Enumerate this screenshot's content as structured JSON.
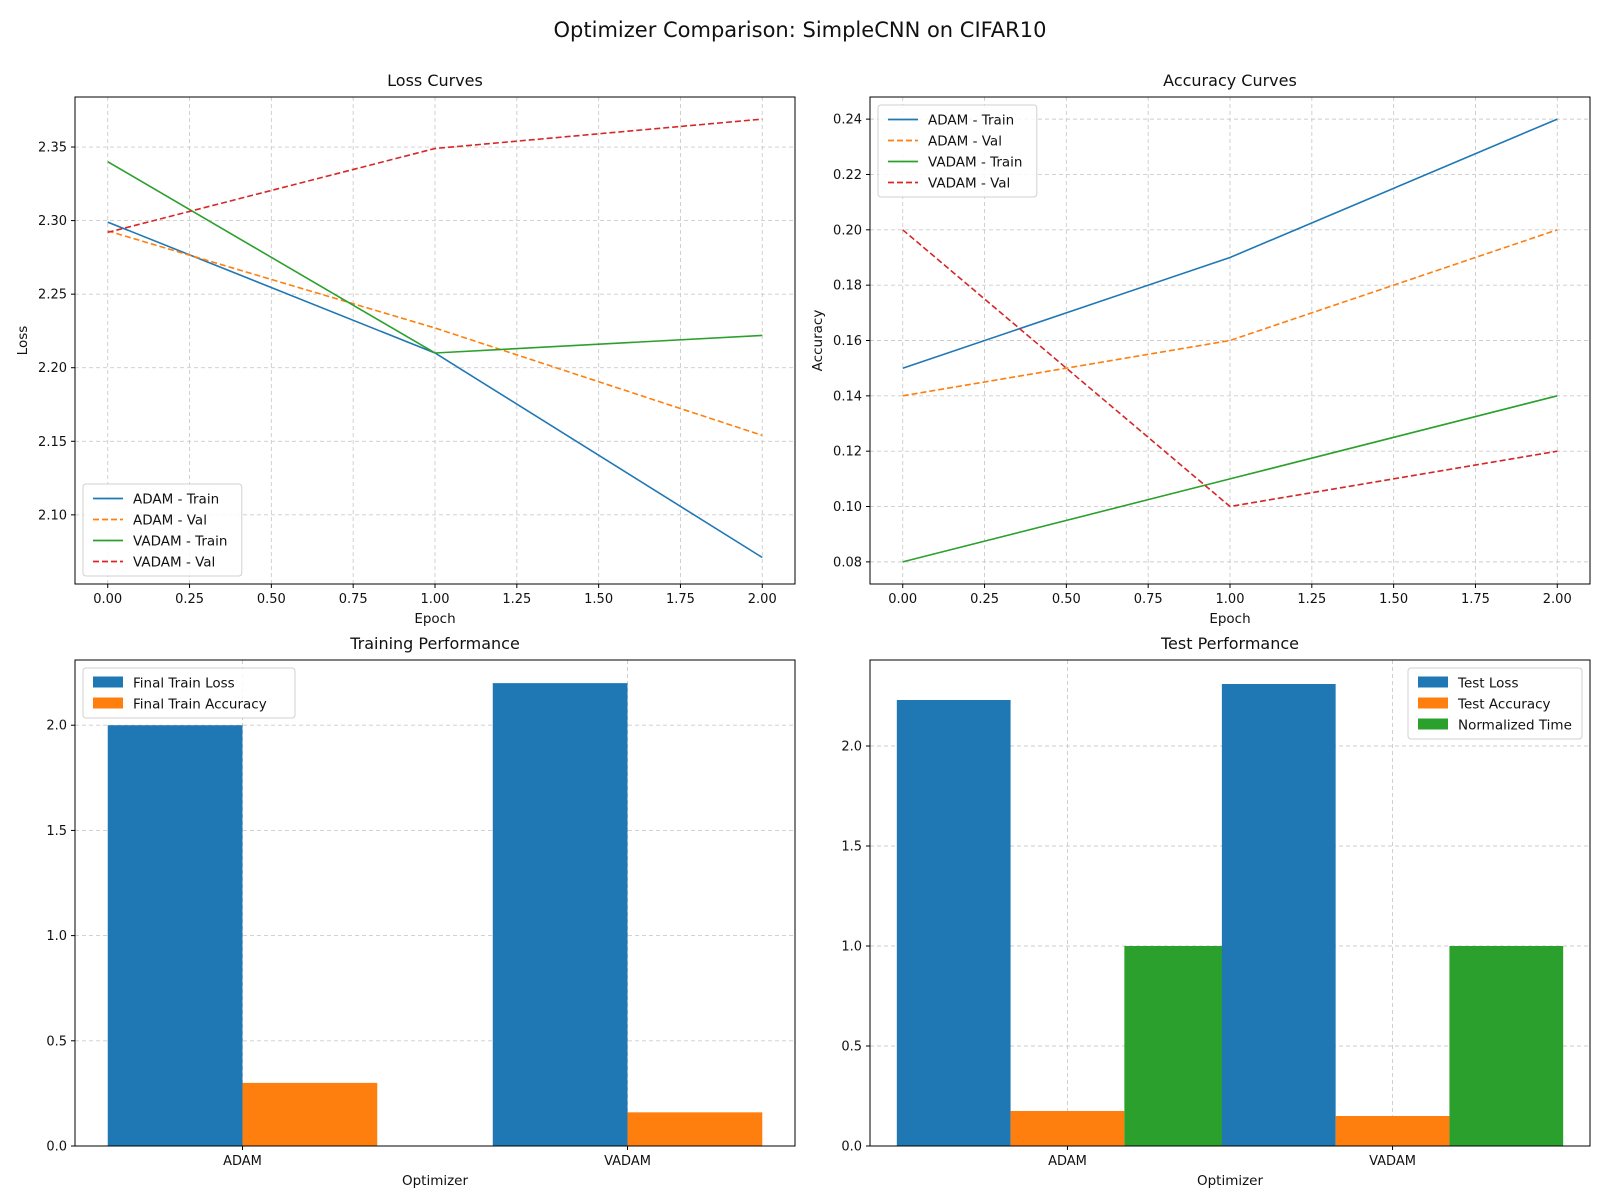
{
  "figure": {
    "title": "Optimizer Comparison: SimpleCNN on CIFAR10"
  },
  "chart_data": [
    {
      "type": "line",
      "title": "Loss Curves",
      "xlabel": "Epoch",
      "ylabel": "Loss",
      "x": [
        0,
        1,
        2
      ],
      "xlim": [
        -0.1,
        2.1
      ],
      "ylim": [
        2.053,
        2.384
      ],
      "xticks": [
        0,
        0.25,
        0.5,
        0.75,
        1.0,
        1.25,
        1.5,
        1.75,
        2.0
      ],
      "xtick_labels": [
        "0.00",
        "0.25",
        "0.50",
        "0.75",
        "1.00",
        "1.25",
        "1.50",
        "1.75",
        "2.00"
      ],
      "yticks": [
        2.1,
        2.15,
        2.2,
        2.25,
        2.3,
        2.35
      ],
      "ytick_labels": [
        "2.10",
        "2.15",
        "2.20",
        "2.25",
        "2.30",
        "2.35"
      ],
      "grid": true,
      "legend": "lower-left",
      "series": [
        {
          "name": "ADAM - Train",
          "values": [
            2.299,
            2.21,
            2.071
          ],
          "color": "#1f77b4",
          "dashed": false
        },
        {
          "name": "ADAM - Val",
          "values": [
            2.293,
            2.227,
            2.154
          ],
          "color": "#ff7f0e",
          "dashed": true
        },
        {
          "name": "VADAM - Train",
          "values": [
            2.34,
            2.21,
            2.222
          ],
          "color": "#2ca02c",
          "dashed": false
        },
        {
          "name": "VADAM - Val",
          "values": [
            2.292,
            2.349,
            2.369
          ],
          "color": "#d62728",
          "dashed": true
        }
      ]
    },
    {
      "type": "line",
      "title": "Accuracy Curves",
      "xlabel": "Epoch",
      "ylabel": "Accuracy",
      "x": [
        0,
        1,
        2
      ],
      "xlim": [
        -0.1,
        2.1
      ],
      "ylim": [
        0.072,
        0.248
      ],
      "xticks": [
        0,
        0.25,
        0.5,
        0.75,
        1.0,
        1.25,
        1.5,
        1.75,
        2.0
      ],
      "xtick_labels": [
        "0.00",
        "0.25",
        "0.50",
        "0.75",
        "1.00",
        "1.25",
        "1.50",
        "1.75",
        "2.00"
      ],
      "yticks": [
        0.08,
        0.1,
        0.12,
        0.14,
        0.16,
        0.18,
        0.2,
        0.22,
        0.24
      ],
      "ytick_labels": [
        "0.08",
        "0.10",
        "0.12",
        "0.14",
        "0.16",
        "0.18",
        "0.20",
        "0.22",
        "0.24"
      ],
      "grid": true,
      "legend": "upper-left",
      "series": [
        {
          "name": "ADAM - Train",
          "values": [
            0.15,
            0.19,
            0.24
          ],
          "color": "#1f77b4",
          "dashed": false
        },
        {
          "name": "ADAM - Val",
          "values": [
            0.14,
            0.16,
            0.2
          ],
          "color": "#ff7f0e",
          "dashed": true
        },
        {
          "name": "VADAM - Train",
          "values": [
            0.08,
            0.11,
            0.14
          ],
          "color": "#2ca02c",
          "dashed": false
        },
        {
          "name": "VADAM - Val",
          "values": [
            0.2,
            0.1,
            0.12
          ],
          "color": "#d62728",
          "dashed": true
        }
      ]
    },
    {
      "type": "bar",
      "title": "Training Performance",
      "xlabel": "Optimizer",
      "ylabel": "",
      "categories": [
        "ADAM",
        "VADAM"
      ],
      "ylim": [
        0,
        2.31
      ],
      "yticks": [
        0,
        0.5,
        1.0,
        1.5,
        2.0
      ],
      "ytick_labels": [
        "0.0",
        "0.5",
        "1.0",
        "1.5",
        "2.0"
      ],
      "grid": true,
      "legend": "upper-left",
      "series": [
        {
          "name": "Final Train Loss",
          "values": [
            2.0,
            2.2
          ],
          "color": "#1f77b4"
        },
        {
          "name": "Final Train Accuracy",
          "values": [
            0.3,
            0.16
          ],
          "color": "#ff7f0e"
        }
      ]
    },
    {
      "type": "bar",
      "title": "Test Performance",
      "xlabel": "Optimizer",
      "ylabel": "",
      "categories": [
        "ADAM",
        "VADAM"
      ],
      "ylim": [
        0,
        2.43
      ],
      "yticks": [
        0,
        0.5,
        1.0,
        1.5,
        2.0
      ],
      "ytick_labels": [
        "0.0",
        "0.5",
        "1.0",
        "1.5",
        "2.0"
      ],
      "grid": true,
      "legend": "upper-right",
      "series": [
        {
          "name": "Test Loss",
          "values": [
            2.23,
            2.31
          ],
          "color": "#1f77b4"
        },
        {
          "name": "Test Accuracy",
          "values": [
            0.175,
            0.15
          ],
          "color": "#ff7f0e"
        },
        {
          "name": "Normalized Time",
          "values": [
            1.0,
            1.0
          ],
          "color": "#2ca02c"
        }
      ]
    }
  ]
}
